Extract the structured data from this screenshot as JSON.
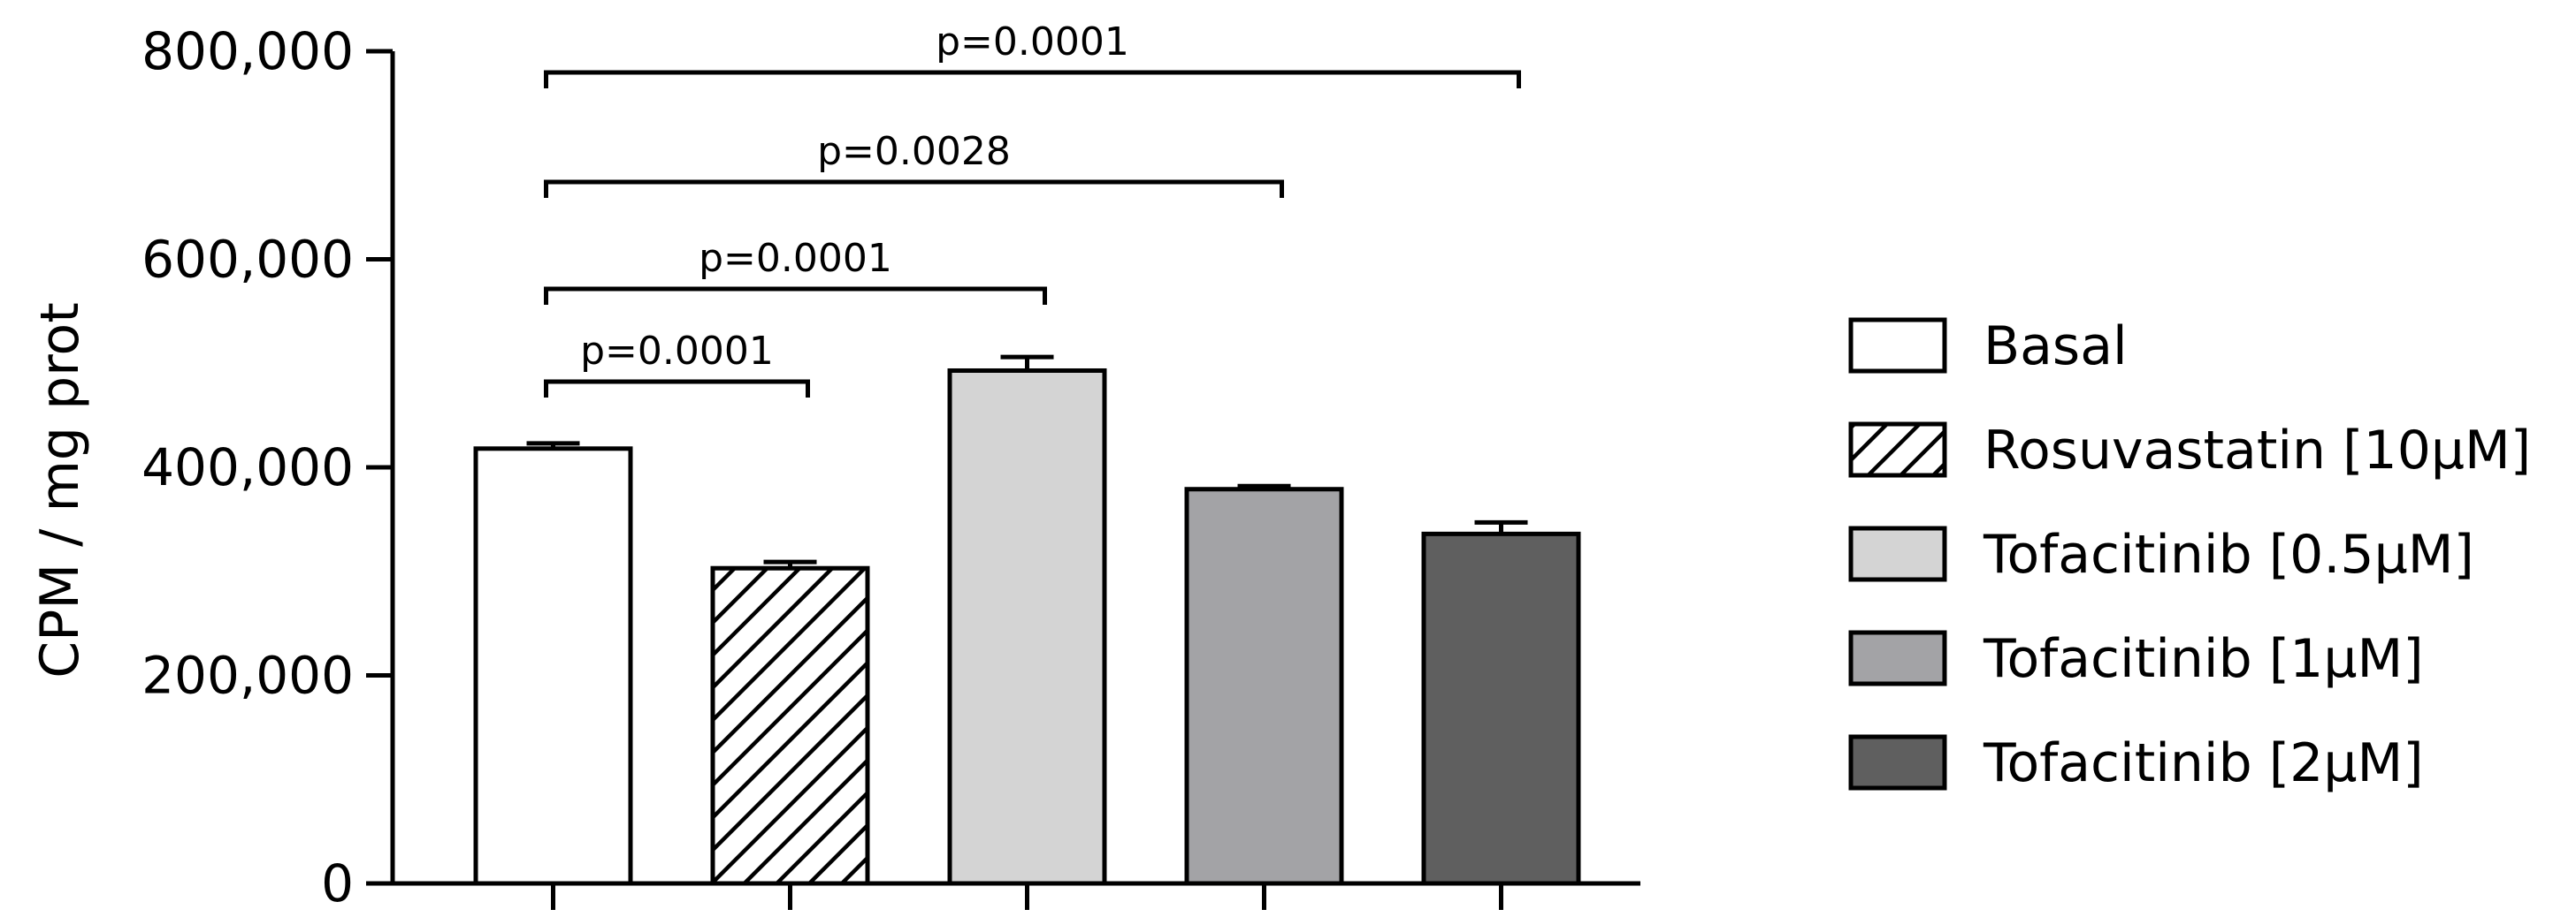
{
  "chart_data": {
    "type": "bar",
    "title": "",
    "xlabel": "",
    "ylabel": "CPM / mg prot",
    "ylim": [
      0,
      800000
    ],
    "yticks": [
      0,
      200000,
      400000,
      600000,
      800000
    ],
    "ytick_labels": [
      "0",
      "200,000",
      "400,000",
      "600,000",
      "800,000"
    ],
    "grid": false,
    "legend_position": "right",
    "series": [
      {
        "name": "Basal",
        "value": 418000,
        "error": 5000,
        "color": "#ffffff",
        "pattern": "none"
      },
      {
        "name": "Rosuvastatin [10μM]",
        "value": 303000,
        "error": 6000,
        "color": "#ffffff",
        "pattern": "diagonal-hatch"
      },
      {
        "name": "Tofacitinib [0.5μM]",
        "value": 493000,
        "error": 13000,
        "color": "#d4d4d4",
        "pattern": "none"
      },
      {
        "name": "Tofacitinib [1μM]",
        "value": 379000,
        "error": 3000,
        "color": "#a3a3a6",
        "pattern": "none"
      },
      {
        "name": "Tofacitinib [2μM]",
        "value": 336000,
        "error": 11000,
        "color": "#5f5f5f",
        "pattern": "none"
      }
    ],
    "comparisons": [
      {
        "from": 0,
        "to": 1,
        "label": "p=0.0001"
      },
      {
        "from": 0,
        "to": 2,
        "label": "p=0.0001"
      },
      {
        "from": 0,
        "to": 3,
        "label": "p=0.0028"
      },
      {
        "from": 0,
        "to": 4,
        "label": "p=0.0001"
      }
    ]
  }
}
